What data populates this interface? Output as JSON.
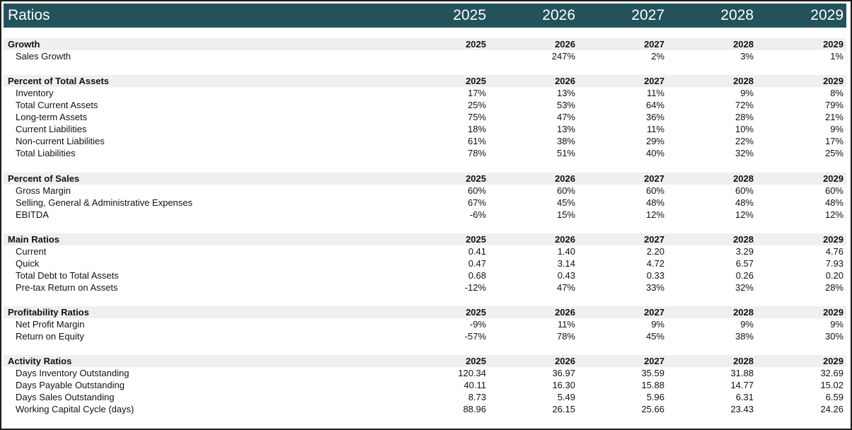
{
  "header": {
    "title": "Ratios",
    "years": [
      "2025",
      "2026",
      "2027",
      "2028",
      "2029"
    ]
  },
  "sections": [
    {
      "title": "Growth",
      "years": [
        "2025",
        "2026",
        "2027",
        "2028",
        "2029"
      ],
      "rows": [
        {
          "label": "Sales Growth",
          "values": [
            "",
            "247%",
            "2%",
            "3%",
            "1%"
          ]
        }
      ]
    },
    {
      "title": "Percent of Total Assets",
      "years": [
        "2025",
        "2026",
        "2027",
        "2028",
        "2029"
      ],
      "rows": [
        {
          "label": "Inventory",
          "values": [
            "17%",
            "13%",
            "11%",
            "9%",
            "8%"
          ]
        },
        {
          "label": "Total Current Assets",
          "values": [
            "25%",
            "53%",
            "64%",
            "72%",
            "79%"
          ]
        },
        {
          "label": "Long-term Assets",
          "values": [
            "75%",
            "47%",
            "36%",
            "28%",
            "21%"
          ]
        },
        {
          "label": "Current Liabilities",
          "values": [
            "18%",
            "13%",
            "11%",
            "10%",
            "9%"
          ]
        },
        {
          "label": "Non-current Liabilities",
          "values": [
            "61%",
            "38%",
            "29%",
            "22%",
            "17%"
          ]
        },
        {
          "label": "Total Liabilities",
          "values": [
            "78%",
            "51%",
            "40%",
            "32%",
            "25%"
          ]
        }
      ]
    },
    {
      "title": "Percent of Sales",
      "years": [
        "2025",
        "2026",
        "2027",
        "2028",
        "2029"
      ],
      "rows": [
        {
          "label": "Gross Margin",
          "values": [
            "60%",
            "60%",
            "60%",
            "60%",
            "60%"
          ]
        },
        {
          "label": "Selling, General & Administrative Expenses",
          "values": [
            "67%",
            "45%",
            "48%",
            "48%",
            "48%"
          ]
        },
        {
          "label": "EBITDA",
          "values": [
            "-6%",
            "15%",
            "12%",
            "12%",
            "12%"
          ]
        }
      ]
    },
    {
      "title": "Main Ratios",
      "years": [
        "2025",
        "2026",
        "2027",
        "2028",
        "2029"
      ],
      "rows": [
        {
          "label": "Current",
          "values": [
            "0.41",
            "1.40",
            "2.20",
            "3.29",
            "4.76"
          ]
        },
        {
          "label": "Quick",
          "values": [
            "0.47",
            "3.14",
            "4.72",
            "6.57",
            "7.93"
          ]
        },
        {
          "label": "Total Debt to Total Assets",
          "values": [
            "0.68",
            "0.43",
            "0.33",
            "0.26",
            "0.20"
          ]
        },
        {
          "label": "Pre-tax Return on Assets",
          "values": [
            "-12%",
            "47%",
            "33%",
            "32%",
            "28%"
          ]
        }
      ]
    },
    {
      "title": "Profitability Ratios",
      "years": [
        "2025",
        "2026",
        "2027",
        "2028",
        "2029"
      ],
      "rows": [
        {
          "label": "Net Profit Margin",
          "values": [
            "-9%",
            "11%",
            "9%",
            "9%",
            "9%"
          ]
        },
        {
          "label": "Return on Equity",
          "values": [
            "-57%",
            "78%",
            "45%",
            "38%",
            "30%"
          ]
        }
      ]
    },
    {
      "title": "Activity Ratios",
      "years": [
        "2025",
        "2026",
        "2027",
        "2028",
        "2029"
      ],
      "rows": [
        {
          "label": "Days Inventory Outstanding",
          "values": [
            "120.34",
            "36.97",
            "35.59",
            "31.88",
            "32.69"
          ]
        },
        {
          "label": "Days Payable Outstanding",
          "values": [
            "40.11",
            "16.30",
            "15.88",
            "14.77",
            "15.02"
          ]
        },
        {
          "label": "Days Sales Outstanding",
          "values": [
            "8.73",
            "5.49",
            "5.96",
            "6.31",
            "6.59"
          ]
        },
        {
          "label": "Working Capital Cycle (days)",
          "values": [
            "88.96",
            "26.15",
            "25.66",
            "23.43",
            "24.26"
          ]
        }
      ]
    }
  ]
}
